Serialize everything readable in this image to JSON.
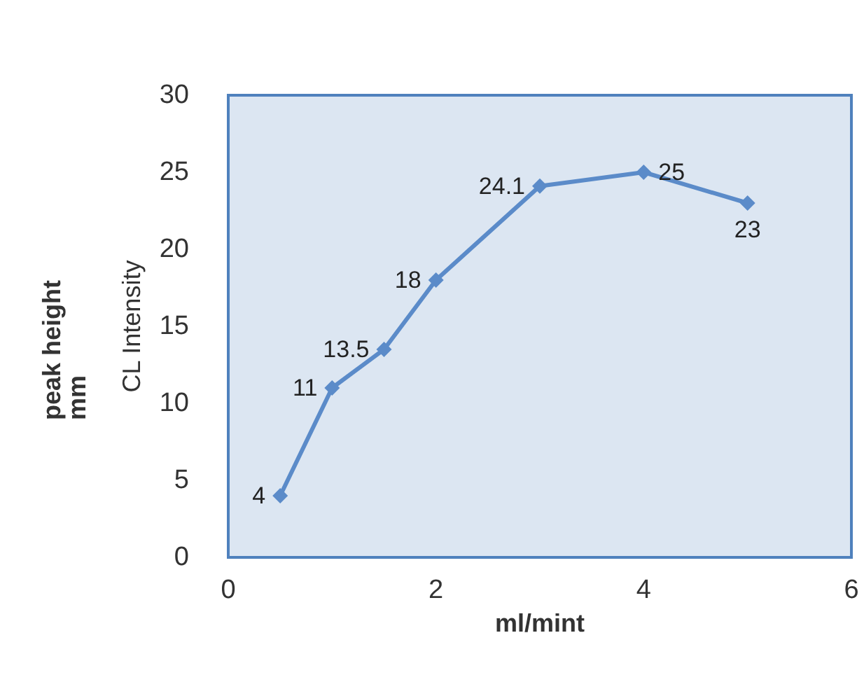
{
  "chart_data": {
    "type": "line",
    "xlabel": "ml/mint",
    "ylabel": "CL Intensity",
    "annotations": [
      "peak height mm"
    ],
    "x": [
      0.5,
      1,
      1.5,
      2,
      3,
      4,
      5
    ],
    "series": [
      {
        "color": "#5b8bc9",
        "values": [
          4,
          11,
          13.5,
          18,
          24.1,
          25,
          23
        ]
      }
    ],
    "xlim": [
      0,
      6
    ],
    "xticks": [
      0,
      2,
      4,
      6
    ],
    "ylim": [
      0,
      30
    ],
    "yticks": [
      0,
      5,
      10,
      15,
      20,
      25,
      30
    ],
    "grid": false,
    "marker": "diamond",
    "line_style": "solid",
    "data_labels": true
  }
}
